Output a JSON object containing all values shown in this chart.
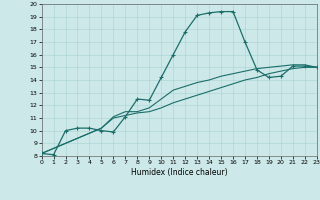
{
  "xlabel": "Humidex (Indice chaleur)",
  "xlim": [
    0,
    23
  ],
  "ylim": [
    8,
    20
  ],
  "xticks": [
    0,
    1,
    2,
    3,
    4,
    5,
    6,
    7,
    8,
    9,
    10,
    11,
    12,
    13,
    14,
    15,
    16,
    17,
    18,
    19,
    20,
    21,
    22,
    23
  ],
  "yticks": [
    8,
    9,
    10,
    11,
    12,
    13,
    14,
    15,
    16,
    17,
    18,
    19,
    20
  ],
  "bg_color": "#cde8e8",
  "line_color": "#1a6e6a",
  "line1_x": [
    0,
    1,
    2,
    3,
    4,
    5,
    6,
    7,
    8,
    9,
    10,
    11,
    12,
    13,
    14,
    15,
    16,
    17,
    18,
    19,
    20,
    21,
    22,
    23
  ],
  "line1_y": [
    8.2,
    8.1,
    10.0,
    10.2,
    10.2,
    10.0,
    9.9,
    11.1,
    12.5,
    12.4,
    14.2,
    16.0,
    17.8,
    19.1,
    19.3,
    19.4,
    19.4,
    17.0,
    14.8,
    14.2,
    14.3,
    15.1,
    15.1,
    15.0
  ],
  "line2_x": [
    0,
    5,
    6,
    7,
    8,
    9,
    10,
    11,
    12,
    13,
    14,
    15,
    16,
    17,
    18,
    19,
    20,
    21,
    22,
    23
  ],
  "line2_y": [
    8.2,
    10.2,
    11.1,
    11.5,
    11.5,
    11.8,
    12.5,
    13.2,
    13.5,
    13.8,
    14.0,
    14.3,
    14.5,
    14.7,
    14.9,
    15.0,
    15.1,
    15.2,
    15.2,
    15.0
  ],
  "line3_x": [
    0,
    5,
    6,
    7,
    8,
    9,
    10,
    11,
    12,
    13,
    14,
    15,
    16,
    17,
    18,
    19,
    20,
    21,
    22,
    23
  ],
  "line3_y": [
    8.2,
    10.2,
    11.0,
    11.2,
    11.4,
    11.5,
    11.8,
    12.2,
    12.5,
    12.8,
    13.1,
    13.4,
    13.7,
    14.0,
    14.2,
    14.5,
    14.7,
    14.9,
    15.0,
    15.0
  ]
}
